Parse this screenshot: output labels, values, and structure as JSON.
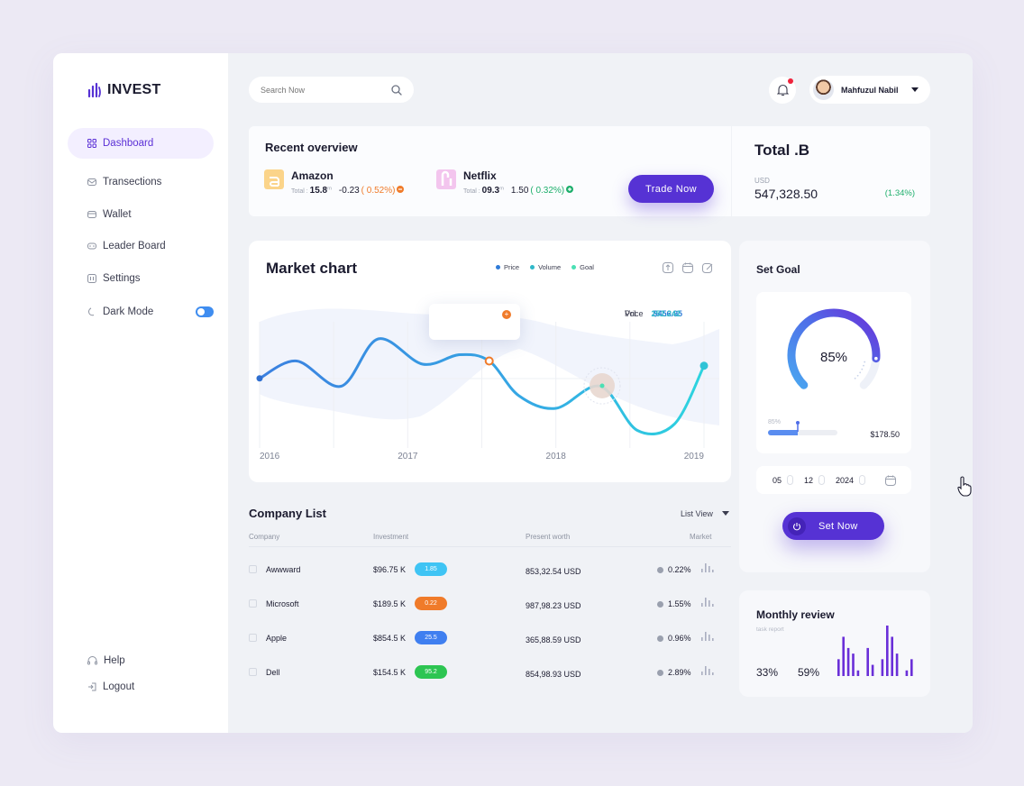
{
  "app": {
    "name": "INVEST"
  },
  "sidebar": {
    "items": [
      {
        "label": "Dashboard",
        "icon": "grid-icon"
      },
      {
        "label": "Transections",
        "icon": "mail-icon"
      },
      {
        "label": "Wallet",
        "icon": "wallet-icon"
      },
      {
        "label": "Leader Board",
        "icon": "gamepad-icon"
      },
      {
        "label": "Settings",
        "icon": "settings-icon"
      },
      {
        "label": "Dark Mode",
        "icon": "moon-icon"
      }
    ],
    "bottom": [
      {
        "label": "Help",
        "icon": "headset-icon"
      },
      {
        "label": "Logout",
        "icon": "logout-icon"
      }
    ]
  },
  "search": {
    "placeholder": "Search Now"
  },
  "user": {
    "name": "Mahfuzul Nabil"
  },
  "overview": {
    "title": "Recent overview",
    "stocks": [
      {
        "name": "Amazon",
        "total_label": "Total :",
        "total": "15.8",
        "unit": "m",
        "change": "-0.23",
        "pct": "( 0.52%)",
        "color": "#f07b2a"
      },
      {
        "name": "Netflix",
        "total_label": "Total :",
        "total": "09.3",
        "unit": "m",
        "change": "1.50",
        "pct": "( 0.32%)",
        "color": "#1eaf6c"
      }
    ],
    "trade_label": "Trade Now"
  },
  "total": {
    "title": "Total .B",
    "currency": "USD",
    "value": "547,328.50",
    "change": "(1.34%)"
  },
  "market": {
    "title": "Market chart",
    "legend": [
      "Price",
      "Volume",
      "Goal"
    ],
    "tooltip": {
      "price_label": "Price",
      "price": "$456.95",
      "vol_label": "Vol",
      "vol": "252.242"
    }
  },
  "chart_data": {
    "type": "line",
    "x": [
      2016,
      2016.25,
      2016.55,
      2016.8,
      2017.1,
      2017.35,
      2017.55,
      2017.75,
      2018,
      2018.3,
      2018.55,
      2018.8,
      2019
    ],
    "categories": [
      "2016",
      "2017",
      "2018",
      "2019"
    ],
    "series": [
      {
        "name": "Price",
        "values": [
          47,
          58,
          42,
          72,
          56,
          62,
          58,
          36,
          28,
          42,
          14,
          18,
          55
        ]
      }
    ],
    "colors": {
      "Price": "#2f7bd8",
      "Volume": "#2fb8c9",
      "Goal": "#4be0b4"
    }
  },
  "companies": {
    "title": "Company List",
    "view_label": "List View",
    "columns": [
      "Company",
      "Investment",
      "Present worth",
      "Market"
    ],
    "rows": [
      {
        "name": "Awwward",
        "investment": "$96.75 K",
        "badge": "1.85",
        "badge_color": "#3fc4f4",
        "worth": "853,32.54 USD",
        "market": "0.22%"
      },
      {
        "name": "Microsoft",
        "investment": "$189.5 K",
        "badge": "0.22",
        "badge_color": "#f07b2a",
        "worth": "987,98.23 USD",
        "market": "1.55%"
      },
      {
        "name": "Apple",
        "investment": "$854.5 K",
        "badge": "25.5",
        "badge_color": "#3f7ff0",
        "worth": "365,88.59 USD",
        "market": "0.96%"
      },
      {
        "name": "Dell",
        "investment": "$154.5 K",
        "badge": "95.2",
        "badge_color": "#2dc552",
        "worth": "854,98.93 USD",
        "market": "2.89%"
      }
    ]
  },
  "goal": {
    "title": "Set Goal",
    "percent": "85%",
    "progress": 0.85,
    "slider_label": "85%",
    "amount": "$178.50",
    "date": {
      "day": "05",
      "month": "12",
      "year": "2024"
    },
    "button": "Set Now"
  },
  "review": {
    "title": "Monthly review",
    "subtitle": "task report",
    "p1": "33%",
    "p2": "59%",
    "bars": [
      3,
      7,
      5,
      4,
      1,
      0,
      5,
      2,
      0,
      3,
      9,
      7,
      4,
      0,
      1,
      3
    ]
  }
}
